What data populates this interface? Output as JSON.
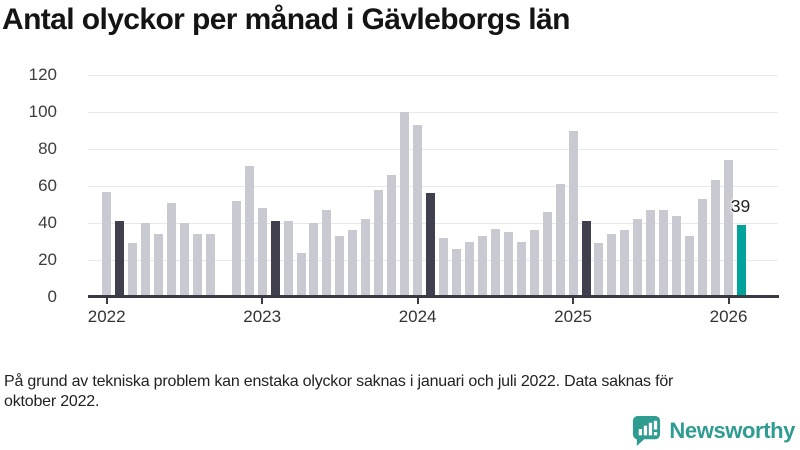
{
  "title": "Antal olyckor per månad i Gävleborgs län",
  "footnote": "På grund av tekniska problem kan enstaka olyckor saknas i januari och juli 2022. Data saknas för oktober 2022.",
  "branding": {
    "name": "Newsworthy",
    "color": "#2f9c92",
    "icon": "bar-chart-speech-bubble"
  },
  "chart_data": {
    "type": "bar",
    "title": "Antal olyckor per månad i Gävleborgs län",
    "x_start_month": "2022-01",
    "x_end_month": "2026-02",
    "x_year_ticks": [
      "2022",
      "2023",
      "2024",
      "2025",
      "2026"
    ],
    "y_ticks": [
      0,
      20,
      40,
      60,
      80,
      100,
      120
    ],
    "ylim": [
      0,
      120
    ],
    "grid": true,
    "series": [
      {
        "name": "Antal olyckor per månad",
        "values": [
          57,
          41,
          29,
          40,
          34,
          51,
          40,
          34,
          34,
          null,
          52,
          71,
          48,
          41,
          41,
          24,
          40,
          47,
          33,
          36,
          42,
          58,
          66,
          100,
          93,
          56,
          32,
          26,
          30,
          33,
          37,
          35,
          30,
          36,
          46,
          61,
          90,
          41,
          29,
          34,
          36,
          42,
          47,
          47,
          44,
          33,
          53,
          63,
          74,
          39
        ]
      }
    ],
    "missing_months": [
      "2022-10"
    ],
    "highlighted_dark_months": [
      "2022-02",
      "2023-02",
      "2024-02",
      "2025-02"
    ],
    "latest_month": "2026-02",
    "latest_value_label": "39",
    "colors": {
      "bar": "#c9c9d2",
      "bar_dark": "#3f3f4e",
      "bar_latest": "#00a39b",
      "grid": "#e9e9ec",
      "axis": "#3a3a44"
    }
  }
}
